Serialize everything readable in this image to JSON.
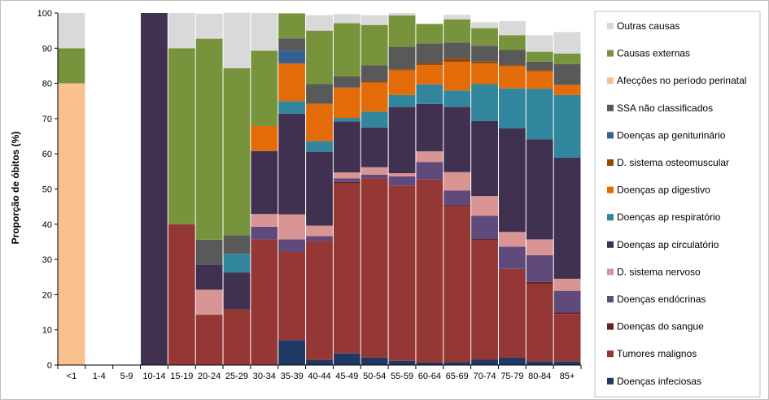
{
  "chart_data": {
    "type": "bar",
    "stacked": true,
    "percent_stacked": true,
    "title": "",
    "xlabel": "",
    "ylabel": "Proporção de óbitos (%)",
    "ylim": [
      0,
      100
    ],
    "yticks": [
      0,
      10,
      20,
      30,
      40,
      50,
      60,
      70,
      80,
      90,
      100
    ],
    "grid": false,
    "legend_position": "right",
    "categories": [
      "<1",
      "1-4",
      "5-9",
      "10-14",
      "15-19",
      "20-24",
      "25-29",
      "30-34",
      "35-39",
      "40-44",
      "45-49",
      "50-54",
      "55-59",
      "60-64",
      "65-69",
      "70-74",
      "75-79",
      "80-84",
      "85+"
    ],
    "series": [
      {
        "name": "Doenças infeciosas",
        "color": "#1f3864",
        "values": [
          0,
          0,
          0,
          0,
          0,
          0,
          0,
          0,
          7.1,
          1.4,
          3.3,
          2.1,
          1.2,
          0.7,
          0.8,
          1.5,
          2.1,
          1.1,
          1.0
        ]
      },
      {
        "name": "Tumores malignos",
        "color": "#953735",
        "values": [
          0,
          0,
          0,
          0,
          40,
          14.3,
          15.8,
          35.7,
          25,
          33.8,
          48.3,
          51,
          49.8,
          52,
          44.2,
          33.9,
          25.2,
          21.9,
          13.5
        ]
      },
      {
        "name": "Doenças do sangue",
        "color": "#632523",
        "values": [
          0,
          0,
          0,
          0,
          0,
          0,
          0,
          0,
          0,
          0,
          0.4,
          0,
          0,
          0,
          0.4,
          0.4,
          0,
          0.6,
          0.4
        ]
      },
      {
        "name": "Doenças endócrinas",
        "color": "#604a7b",
        "values": [
          0,
          0,
          0,
          0,
          0,
          0,
          0,
          3.6,
          3.6,
          1.4,
          1.0,
          1.0,
          2.6,
          5.0,
          4.2,
          6.6,
          6.3,
          7.6,
          6.2
        ]
      },
      {
        "name": "D. sistema nervoso",
        "color": "#d99594",
        "values": [
          0,
          0,
          0,
          0,
          0,
          7.1,
          0,
          3.6,
          7.1,
          3.0,
          1.7,
          2.1,
          0.9,
          3.0,
          5.2,
          5.6,
          4.2,
          4.5,
          3.4
        ]
      },
      {
        "name": "Doenças ap circulatório",
        "color": "#403151",
        "values": [
          0,
          0,
          0,
          100,
          0,
          7.1,
          10.5,
          17.9,
          28.6,
          21,
          14.5,
          11.3,
          18.8,
          13.5,
          18.5,
          21.3,
          29.4,
          28.4,
          34.4
        ]
      },
      {
        "name": "Doenças ap respiratório",
        "color": "#31859c",
        "values": [
          0,
          0,
          0,
          0,
          0,
          0,
          5.3,
          0,
          3.6,
          3.0,
          1.0,
          4.5,
          3.4,
          5.5,
          4.7,
          10.5,
          11.4,
          14.4,
          17.8
        ]
      },
      {
        "name": "Doenças ap digestivo",
        "color": "#e36c09",
        "values": [
          0,
          0,
          0,
          0,
          0,
          0,
          0,
          7.1,
          10.7,
          10.6,
          8.6,
          8.2,
          7.0,
          5.5,
          8.1,
          5.9,
          6.3,
          4.9,
          2.9
        ]
      },
      {
        "name": "D. sistema osteomuscular",
        "color": "#974806",
        "values": [
          0,
          0,
          0,
          0,
          0,
          0,
          0,
          0,
          0,
          0,
          0,
          0.4,
          0.3,
          0.6,
          1.0,
          0.5,
          0.3,
          0.4,
          0
        ]
      },
      {
        "name": "Doenças ap geniturinário",
        "color": "#366092",
        "values": [
          0,
          0,
          0,
          0,
          0,
          0,
          0,
          0,
          3.6,
          0,
          0,
          0,
          0,
          0,
          0,
          0,
          0,
          0,
          0
        ]
      },
      {
        "name": "SSA não classificados",
        "color": "#595959",
        "values": [
          0,
          0,
          0,
          0,
          0,
          7.1,
          5.3,
          0,
          3.5,
          5.6,
          3.2,
          4.5,
          6.4,
          5.6,
          4.5,
          4.5,
          4.3,
          2.4,
          5.9
        ]
      },
      {
        "name": "Afecções no período perinatal",
        "color": "#fac090",
        "values": [
          80,
          0,
          0,
          0,
          0,
          0,
          0,
          0,
          0,
          0,
          0,
          0,
          0,
          0,
          0,
          0,
          0,
          0,
          0
        ]
      },
      {
        "name": "Causas externas",
        "color": "#77933c",
        "values": [
          10,
          0,
          0,
          0,
          50,
          57.1,
          47.4,
          21.4,
          7.1,
          15.2,
          15.1,
          11.5,
          8.9,
          5.5,
          6.6,
          5.0,
          4.2,
          2.8,
          3.0
        ]
      },
      {
        "name": "Outras causas",
        "color": "#d9d9d9",
        "values": [
          10,
          0,
          0,
          0,
          10,
          7.1,
          15.8,
          10.7,
          0,
          4.4,
          2.6,
          2.8,
          0.7,
          0,
          1.3,
          1.7,
          4.0,
          4.7,
          6.1
        ]
      }
    ]
  }
}
